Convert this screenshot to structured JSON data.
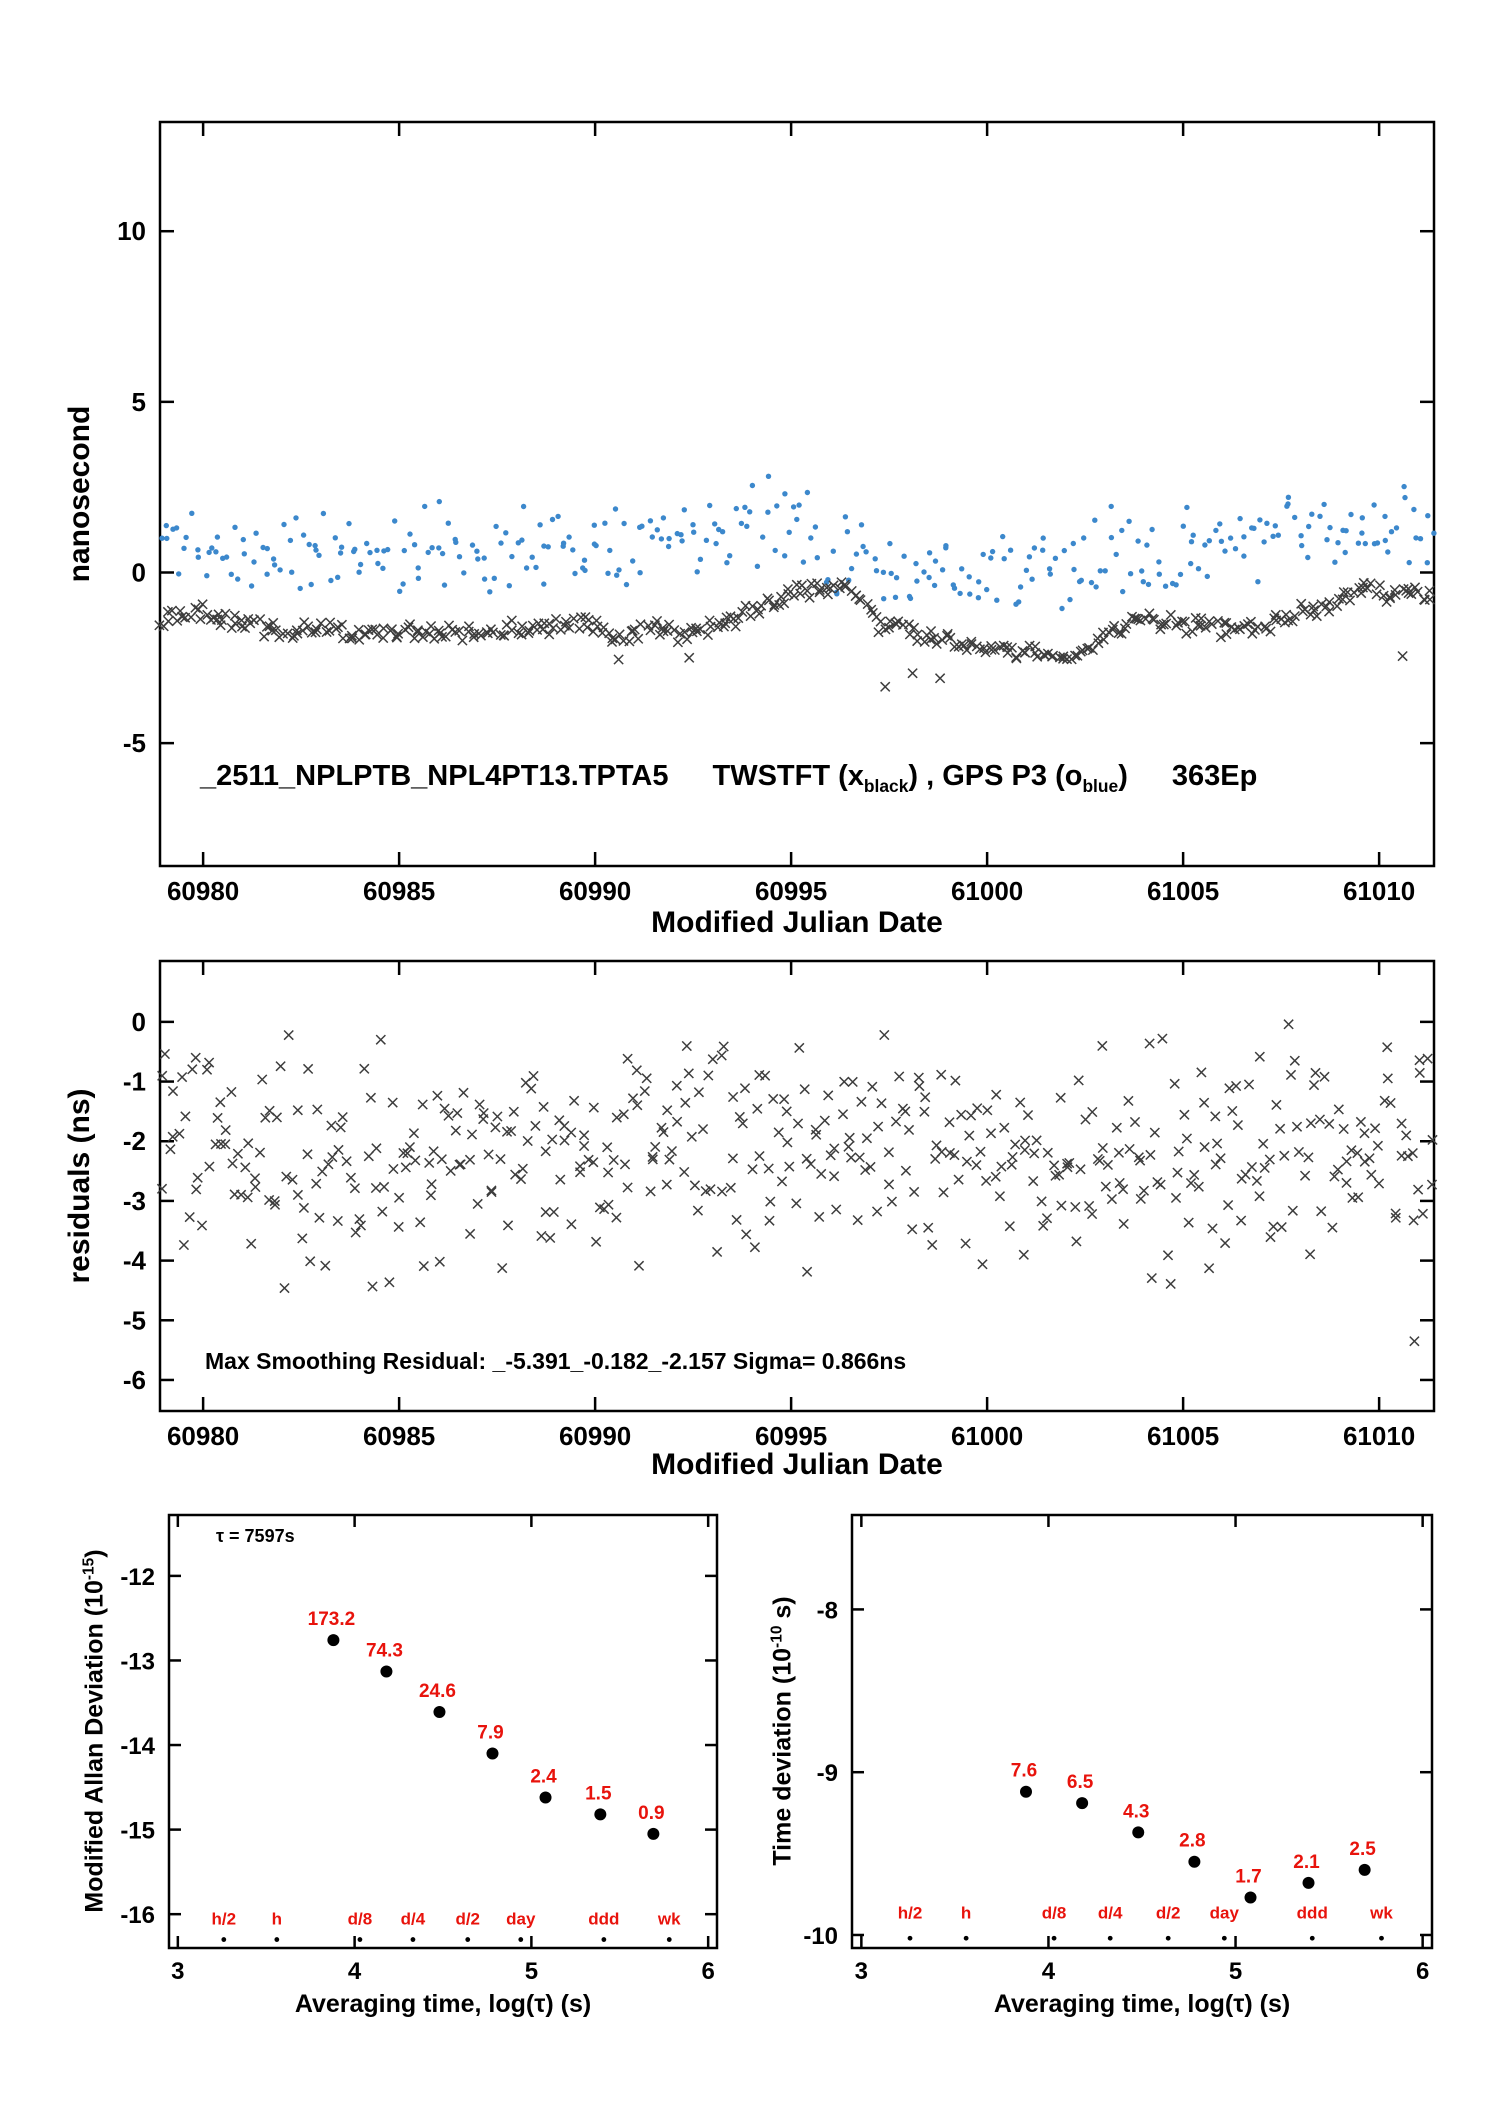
{
  "colors": {
    "blue": "#3c88cc",
    "marker": "#3d3d3d",
    "red": "#e8130c",
    "axis": "#000000"
  },
  "chart_data": [
    {
      "id": "comparison",
      "type": "scatter",
      "ylabel": "nanosecond",
      "xlabel": "Modified Julian Date",
      "xlim": [
        60978.9,
        61011.4
      ],
      "ylim": [
        -8.6,
        13.2
      ],
      "xticks": [
        60980,
        60985,
        60990,
        60995,
        61000,
        61005,
        61010
      ],
      "yticks": [
        -5,
        0,
        5,
        10
      ],
      "title": {
        "station": "_2511_NPLPTB_NPL4PT13.TPTA5",
        "seg1": "TWSTFT (x",
        "sub1": "black",
        "seg2": ") ,  GPS P3 (o",
        "sub2": "blue",
        "seg3": ")",
        "epochs": "363Ep"
      },
      "series": [
        {
          "name": "GPS P3 (blue dots)",
          "marker": "dot",
          "color_key": "blue",
          "n": 335,
          "seed": 11,
          "noise": 1.5,
          "baseline": [
            [
              60978.9,
              0.8
            ],
            [
              60983,
              0.6
            ],
            [
              60986,
              0.7
            ],
            [
              60990,
              0.9
            ],
            [
              60993,
              1.4
            ],
            [
              60995,
              1.5
            ],
            [
              60996.5,
              0.6
            ],
            [
              60998,
              0.1
            ],
            [
              61000,
              -0.1
            ],
            [
              61001.5,
              0
            ],
            [
              61003,
              0.5
            ],
            [
              61005,
              0.8
            ],
            [
              61007,
              0.9
            ],
            [
              61009,
              1.1
            ],
            [
              61011.4,
              1.3
            ]
          ]
        },
        {
          "name": "TWSTFT (black x)",
          "marker": "x",
          "color_key": "marker",
          "n": 405,
          "seed": 23,
          "noise": 0.32,
          "baseline": [
            [
              60978.9,
              -1.45
            ],
            [
              60980,
              -1.2
            ],
            [
              60981,
              -1.5
            ],
            [
              60982,
              -1.75
            ],
            [
              60983,
              -1.65
            ],
            [
              60984,
              -1.75
            ],
            [
              60985,
              -1.7
            ],
            [
              60986,
              -1.8
            ],
            [
              60987,
              -1.75
            ],
            [
              60988,
              -1.7
            ],
            [
              60989,
              -1.6
            ],
            [
              60989.7,
              -1.45
            ],
            [
              60990.5,
              -2
            ],
            [
              60991.3,
              -1.55
            ],
            [
              60992,
              -1.75
            ],
            [
              60992.7,
              -1.65
            ],
            [
              60993.5,
              -1.4
            ],
            [
              60994.3,
              -0.9
            ],
            [
              60995,
              -0.65
            ],
            [
              60995.7,
              -0.5
            ],
            [
              60996.3,
              -0.3
            ],
            [
              60996.8,
              -0.9
            ],
            [
              60997.3,
              -1.55
            ],
            [
              60998,
              -1.8
            ],
            [
              60999,
              -1.95
            ],
            [
              61000,
              -2.2
            ],
            [
              61000.8,
              -2.35
            ],
            [
              61001.5,
              -2.45
            ],
            [
              61002.2,
              -2.35
            ],
            [
              61002.8,
              -2.1
            ],
            [
              61003.3,
              -1.55
            ],
            [
              61004,
              -1.35
            ],
            [
              61004.7,
              -1.5
            ],
            [
              61005.5,
              -1.55
            ],
            [
              61006.2,
              -1.7
            ],
            [
              61007,
              -1.55
            ],
            [
              61007.8,
              -1.3
            ],
            [
              61008.5,
              -1.05
            ],
            [
              61009.2,
              -0.7
            ],
            [
              61009.8,
              -0.45
            ],
            [
              61010.3,
              -0.8
            ],
            [
              61010.8,
              -0.55
            ],
            [
              61011.4,
              -0.75
            ]
          ],
          "extras": [
            [
              60990.6,
              -2.55
            ],
            [
              60992.4,
              -2.5
            ],
            [
              60997.4,
              -3.35
            ],
            [
              60998.1,
              -2.95
            ],
            [
              60998.8,
              -3.1
            ],
            [
              61010.6,
              -2.45
            ]
          ]
        }
      ]
    },
    {
      "id": "residuals",
      "type": "scatter",
      "ylabel": "residuals (ns)",
      "xlabel": "Modified Julian Date",
      "xlim": [
        60978.9,
        61011.4
      ],
      "ylim": [
        -6.52,
        1.02
      ],
      "xticks": [
        60980,
        60985,
        60990,
        60995,
        61000,
        61005,
        61010
      ],
      "yticks": [
        0,
        -1,
        -2,
        -3,
        -4,
        -5,
        -6
      ],
      "annotation": "Max Smoothing Residual: _-5.391_-0.182_-2.157  Sigma= 0.866ns",
      "series": [
        {
          "name": "smoothing residuals (black x)",
          "marker": "x",
          "color_key": "marker",
          "n": 465,
          "seed": 31,
          "noise": 2.3,
          "baseline": [
            [
              60978.9,
              -2.25
            ],
            [
              61011.4,
              -2.25
            ]
          ],
          "extras": [
            [
              61010.9,
              -5.35
            ]
          ]
        }
      ]
    },
    {
      "id": "mdev",
      "type": "point-series",
      "ylabel_parts": {
        "pre": "Modified Allan Deviation (10",
        "sup": "-15",
        "post": ")"
      },
      "xlabel": "Averaging time, log(τ) (s)",
      "xlim": [
        2.95,
        6.05
      ],
      "ylim": [
        -16.4,
        -11.28
      ],
      "xticks": [
        3,
        4,
        5,
        6
      ],
      "yticks": [
        -12,
        -13,
        -14,
        -15,
        -16
      ],
      "tau_annotation": "τ = 7597s",
      "points": [
        {
          "x": 3.88,
          "y": -12.76,
          "label": "173.2"
        },
        {
          "x": 4.18,
          "y": -13.13,
          "label": "74.3"
        },
        {
          "x": 4.48,
          "y": -13.61,
          "label": "24.6"
        },
        {
          "x": 4.78,
          "y": -14.1,
          "label": "7.9"
        },
        {
          "x": 5.08,
          "y": -14.62,
          "label": "2.4"
        },
        {
          "x": 5.39,
          "y": -14.82,
          "label": "1.5"
        },
        {
          "x": 5.69,
          "y": -15.05,
          "label": "0.9"
        }
      ],
      "tau_ticks": [
        {
          "x": 3.26,
          "label": "h/2"
        },
        {
          "x": 3.56,
          "label": "h"
        },
        {
          "x": 4.03,
          "label": "d/8"
        },
        {
          "x": 4.33,
          "label": "d/4"
        },
        {
          "x": 4.64,
          "label": "d/2"
        },
        {
          "x": 4.94,
          "label": "day"
        },
        {
          "x": 5.41,
          "label": "ddd"
        },
        {
          "x": 5.78,
          "label": "wk"
        }
      ],
      "tau_label_y": -16.12,
      "tau_dot_y": -16.3
    },
    {
      "id": "tdev",
      "type": "point-series",
      "ylabel_parts": {
        "pre": "Time deviation (10",
        "sup": "-10",
        "post": " s)"
      },
      "xlabel": "Averaging time, log(τ) (s)",
      "xlim": [
        2.95,
        6.05
      ],
      "ylim": [
        -10.08,
        -7.42
      ],
      "xticks": [
        3,
        4,
        5,
        6
      ],
      "yticks": [
        -8,
        -9,
        -10
      ],
      "points": [
        {
          "x": 3.88,
          "y": -9.12,
          "label": "7.6"
        },
        {
          "x": 4.18,
          "y": -9.19,
          "label": "6.5"
        },
        {
          "x": 4.48,
          "y": -9.37,
          "label": "4.3"
        },
        {
          "x": 4.78,
          "y": -9.55,
          "label": "2.8"
        },
        {
          "x": 5.08,
          "y": -9.77,
          "label": "1.7"
        },
        {
          "x": 5.39,
          "y": -9.68,
          "label": "2.1"
        },
        {
          "x": 5.69,
          "y": -9.6,
          "label": "2.5"
        }
      ],
      "tau_ticks": [
        {
          "x": 3.26,
          "label": "h/2"
        },
        {
          "x": 3.56,
          "label": "h"
        },
        {
          "x": 4.03,
          "label": "d/8"
        },
        {
          "x": 4.33,
          "label": "d/4"
        },
        {
          "x": 4.64,
          "label": "d/2"
        },
        {
          "x": 4.94,
          "label": "day"
        },
        {
          "x": 5.41,
          "label": "ddd"
        },
        {
          "x": 5.78,
          "label": "wk"
        }
      ],
      "tau_label_y": -9.9,
      "tau_dot_y": -10.02
    }
  ]
}
